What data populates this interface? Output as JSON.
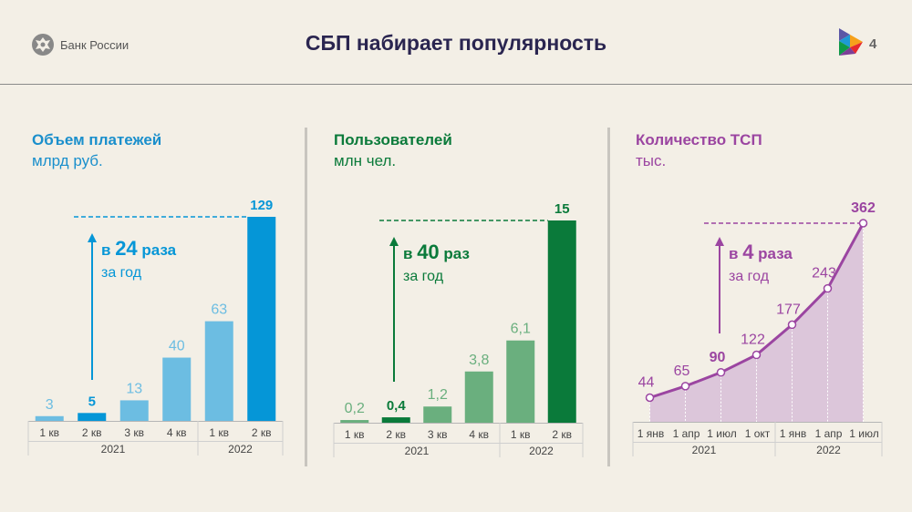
{
  "header": {
    "org_name": "Банк России",
    "title": "СБП набирает популярность",
    "page_number": "4"
  },
  "colors": {
    "blue_light": "#6cbde2",
    "blue_dark": "#0596d7",
    "green_light": "#6aaf7e",
    "green_dark": "#0a7a3a",
    "purple_line": "#9b45a1",
    "purple_area": "#dcc6da"
  },
  "chart_data": [
    {
      "type": "bar",
      "title": "Объем платежей",
      "unit": "млрд руб.",
      "categories": [
        "1 кв",
        "2 кв",
        "3 кв",
        "4 кв",
        "1 кв",
        "2 кв"
      ],
      "labels": [
        "3",
        "5",
        "13",
        "40",
        "63",
        "129"
      ],
      "values": [
        3,
        5,
        13,
        40,
        63,
        129
      ],
      "highlight": [
        false,
        true,
        false,
        false,
        false,
        true
      ],
      "years": [
        {
          "label": "2021",
          "count": 4
        },
        {
          "label": "2022",
          "count": 2
        }
      ],
      "annotation": {
        "prefix": "в ",
        "number": "24",
        "suffix": " раза",
        "sub": "за год"
      }
    },
    {
      "type": "bar",
      "title": "Пользователей",
      "unit": "млн чел.",
      "categories": [
        "1 кв",
        "2 кв",
        "3 кв",
        "4 кв",
        "1 кв",
        "2 кв"
      ],
      "labels": [
        "0,2",
        "0,4",
        "1,2",
        "3,8",
        "6,1",
        "15"
      ],
      "values": [
        0.2,
        0.4,
        1.2,
        3.8,
        6.1,
        15
      ],
      "highlight": [
        false,
        true,
        false,
        false,
        false,
        true
      ],
      "years": [
        {
          "label": "2021",
          "count": 4
        },
        {
          "label": "2022",
          "count": 2
        }
      ],
      "annotation": {
        "prefix": "в ",
        "number": "40",
        "suffix": " раз",
        "sub": "за год"
      }
    },
    {
      "type": "area",
      "title": "Количество ТСП",
      "unit": "тыс.",
      "categories": [
        "1 янв",
        "1 апр",
        "1 июл",
        "1 окт",
        "1 янв",
        "1 апр",
        "1 июл"
      ],
      "labels": [
        "44",
        "65",
        "90",
        "122",
        "177",
        "243",
        "362"
      ],
      "values": [
        44,
        65,
        90,
        122,
        177,
        243,
        362
      ],
      "highlight": [
        false,
        false,
        true,
        false,
        false,
        false,
        true
      ],
      "years": [
        {
          "label": "2021",
          "count": 4
        },
        {
          "label": "2022",
          "count": 3
        }
      ],
      "annotation": {
        "prefix": "в ",
        "number": "4",
        "suffix": " раза",
        "sub": "за год"
      }
    }
  ]
}
